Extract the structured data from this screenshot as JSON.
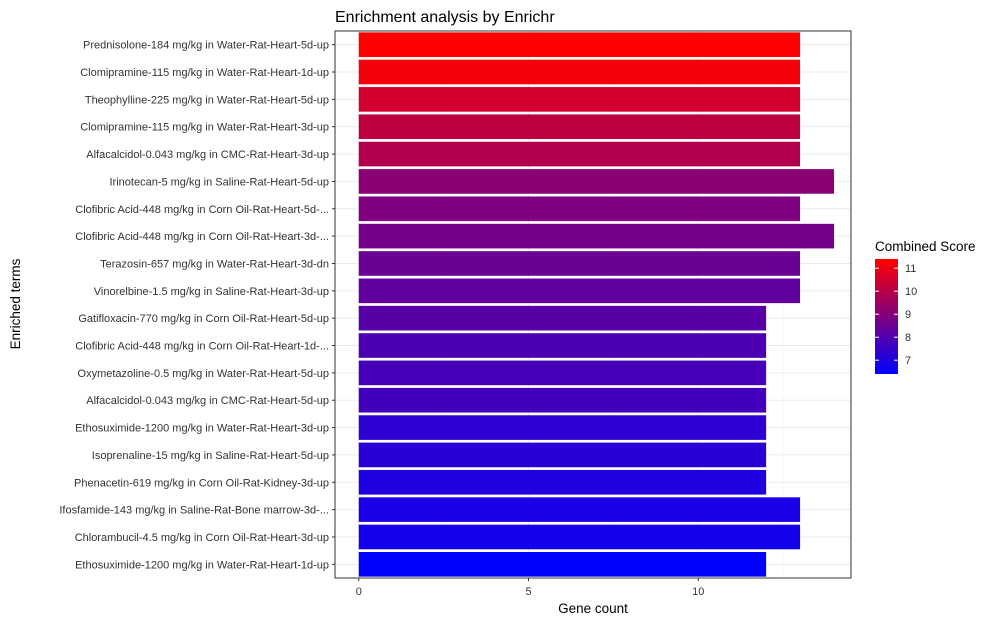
{
  "chart_data": {
    "type": "bar",
    "orientation": "horizontal",
    "title": "Enrichment analysis by Enrichr",
    "xlabel": "Gene count",
    "ylabel": "Enriched terms",
    "xlim": [
      -0.7,
      14.5
    ],
    "xticks": [
      0,
      5,
      10
    ],
    "grid": true,
    "categories": [
      "Prednisolone-184 mg/kg in Water-Rat-Heart-5d-up",
      "Clomipramine-115 mg/kg in Water-Rat-Heart-1d-up",
      "Theophylline-225 mg/kg in Water-Rat-Heart-5d-up",
      "Clomipramine-115 mg/kg in Water-Rat-Heart-3d-up",
      "Alfacalcidol-0.043 mg/kg in CMC-Rat-Heart-3d-up",
      "Irinotecan-5 mg/kg in Saline-Rat-Heart-5d-up",
      "Clofibric Acid-448 mg/kg in Corn Oil-Rat-Heart-5d-...",
      "Clofibric Acid-448 mg/kg in Corn Oil-Rat-Heart-3d-...",
      "Terazosin-657 mg/kg in Water-Rat-Heart-3d-dn",
      "Vinorelbine-1.5 mg/kg in Saline-Rat-Heart-3d-up",
      "Gatifloxacin-770 mg/kg in Corn Oil-Rat-Heart-5d-up",
      "Clofibric Acid-448 mg/kg in Corn Oil-Rat-Heart-1d-...",
      "Oxymetazoline-0.5 mg/kg in Water-Rat-Heart-5d-up",
      "Alfacalcidol-0.043 mg/kg in CMC-Rat-Heart-5d-up",
      "Ethosuximide-1200 mg/kg in Water-Rat-Heart-3d-up",
      "Isoprenaline-15 mg/kg in Saline-Rat-Heart-5d-up",
      "Phenacetin-619 mg/kg in Corn Oil-Rat-Kidney-3d-up",
      "Ifosfamide-143 mg/kg in Saline-Rat-Bone marrow-3d-...",
      "Chlorambucil-4.5 mg/kg in Corn Oil-Rat-Heart-3d-up",
      "Ethosuximide-1200 mg/kg in Water-Rat-Heart-1d-up"
    ],
    "values": [
      13,
      13,
      13,
      13,
      13,
      14,
      13,
      14,
      13,
      13,
      12,
      12,
      12,
      12,
      12,
      12,
      12,
      13,
      13,
      12
    ],
    "color_values": [
      11.4,
      11.2,
      10.5,
      10.1,
      9.9,
      9.1,
      8.9,
      8.7,
      8.5,
      8.3,
      8.1,
      7.9,
      7.8,
      7.7,
      7.3,
      7.2,
      7.0,
      6.9,
      6.8,
      6.4
    ],
    "legend": {
      "title": "Combined Score",
      "position": "right",
      "ticks": [
        7,
        8,
        9,
        10,
        11
      ],
      "range": [
        6.4,
        11.4
      ],
      "low_color": "#0000ff",
      "high_color": "#ff0000"
    },
    "colors": {
      "panel_border": "#333333",
      "grid_major": "#ebebeb",
      "grid_minor": "#f5f5f5"
    }
  }
}
